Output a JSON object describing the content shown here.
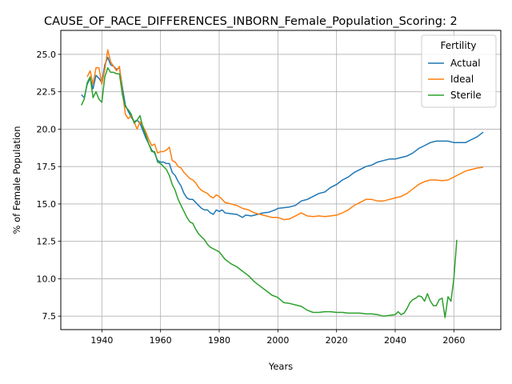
{
  "chart_data": {
    "type": "line",
    "title": "CAUSE_OF_RACE_DIFFERENCES_INBORN_Female_Population_Scoring: 2",
    "xlabel": "Years",
    "ylabel": "% of Female Population",
    "xlim": [
      1926,
      2076
    ],
    "ylim": [
      6.6,
      26.6
    ],
    "xticks": [
      1940,
      1960,
      1980,
      2000,
      2020,
      2040,
      2060
    ],
    "yticks": [
      7.5,
      10.0,
      12.5,
      15.0,
      17.5,
      20.0,
      22.5,
      25.0
    ],
    "grid": true,
    "legend": {
      "title": "Fertility",
      "position": "top-right"
    },
    "series": [
      {
        "name": "Actual",
        "color": "#1f77b4",
        "points": [
          [
            1933,
            22.3
          ],
          [
            1934,
            22.1
          ],
          [
            1935,
            23.0
          ],
          [
            1936,
            23.4
          ],
          [
            1937,
            22.7
          ],
          [
            1938,
            23.6
          ],
          [
            1939,
            23.4
          ],
          [
            1940,
            23.1
          ],
          [
            1941,
            24.3
          ],
          [
            1942,
            24.8
          ],
          [
            1943,
            24.3
          ],
          [
            1944,
            24.2
          ],
          [
            1945,
            24.0
          ],
          [
            1946,
            24.1
          ],
          [
            1947,
            22.8
          ],
          [
            1948,
            21.6
          ],
          [
            1949,
            21.2
          ],
          [
            1950,
            20.8
          ],
          [
            1951,
            20.5
          ],
          [
            1952,
            20.6
          ],
          [
            1953,
            20.4
          ],
          [
            1954,
            19.9
          ],
          [
            1955,
            19.4
          ],
          [
            1956,
            19.0
          ],
          [
            1957,
            18.6
          ],
          [
            1958,
            18.4
          ],
          [
            1959,
            17.9
          ],
          [
            1960,
            17.8
          ],
          [
            1961,
            17.8
          ],
          [
            1962,
            17.7
          ],
          [
            1963,
            17.7
          ],
          [
            1964,
            17.1
          ],
          [
            1965,
            16.9
          ],
          [
            1966,
            16.5
          ],
          [
            1967,
            16.2
          ],
          [
            1968,
            15.7
          ],
          [
            1969,
            15.4
          ],
          [
            1970,
            15.3
          ],
          [
            1971,
            15.3
          ],
          [
            1972,
            15.1
          ],
          [
            1973,
            14.9
          ],
          [
            1974,
            14.7
          ],
          [
            1975,
            14.6
          ],
          [
            1976,
            14.6
          ],
          [
            1977,
            14.4
          ],
          [
            1978,
            14.3
          ],
          [
            1979,
            14.6
          ],
          [
            1980,
            14.5
          ],
          [
            1981,
            14.6
          ],
          [
            1982,
            14.4
          ],
          [
            1984,
            14.35
          ],
          [
            1986,
            14.3
          ],
          [
            1988,
            14.1
          ],
          [
            1989,
            14.25
          ],
          [
            1991,
            14.2
          ],
          [
            1993,
            14.3
          ],
          [
            1995,
            14.4
          ],
          [
            1997,
            14.45
          ],
          [
            1999,
            14.6
          ],
          [
            2000,
            14.7
          ],
          [
            2002,
            14.75
          ],
          [
            2004,
            14.8
          ],
          [
            2006,
            14.9
          ],
          [
            2008,
            15.2
          ],
          [
            2010,
            15.3
          ],
          [
            2012,
            15.5
          ],
          [
            2014,
            15.7
          ],
          [
            2016,
            15.8
          ],
          [
            2018,
            16.1
          ],
          [
            2020,
            16.3
          ],
          [
            2022,
            16.6
          ],
          [
            2024,
            16.8
          ],
          [
            2026,
            17.1
          ],
          [
            2028,
            17.3
          ],
          [
            2030,
            17.5
          ],
          [
            2032,
            17.6
          ],
          [
            2034,
            17.8
          ],
          [
            2036,
            17.9
          ],
          [
            2038,
            18.0
          ],
          [
            2040,
            18.0
          ],
          [
            2042,
            18.1
          ],
          [
            2044,
            18.2
          ],
          [
            2046,
            18.4
          ],
          [
            2048,
            18.7
          ],
          [
            2050,
            18.9
          ],
          [
            2052,
            19.1
          ],
          [
            2054,
            19.2
          ],
          [
            2056,
            19.2
          ],
          [
            2058,
            19.2
          ],
          [
            2060,
            19.1
          ],
          [
            2062,
            19.1
          ],
          [
            2064,
            19.1
          ],
          [
            2066,
            19.3
          ],
          [
            2068,
            19.5
          ],
          [
            2070,
            19.8
          ]
        ]
      },
      {
        "name": "Ideal",
        "color": "#ff7f0e",
        "points": [
          [
            1935,
            23.5
          ],
          [
            1936,
            23.9
          ],
          [
            1937,
            23.0
          ],
          [
            1938,
            24.1
          ],
          [
            1939,
            24.1
          ],
          [
            1940,
            23.0
          ],
          [
            1941,
            24.0
          ],
          [
            1942,
            25.3
          ],
          [
            1943,
            24.5
          ],
          [
            1944,
            24.2
          ],
          [
            1945,
            23.9
          ],
          [
            1946,
            24.2
          ],
          [
            1947,
            22.5
          ],
          [
            1948,
            21.0
          ],
          [
            1949,
            20.7
          ],
          [
            1950,
            20.9
          ],
          [
            1951,
            20.5
          ],
          [
            1952,
            20.0
          ],
          [
            1953,
            20.5
          ],
          [
            1954,
            20.2
          ],
          [
            1955,
            19.8
          ],
          [
            1956,
            19.3
          ],
          [
            1957,
            18.9
          ],
          [
            1958,
            19.0
          ],
          [
            1959,
            18.4
          ],
          [
            1960,
            18.5
          ],
          [
            1961,
            18.5
          ],
          [
            1962,
            18.6
          ],
          [
            1963,
            18.8
          ],
          [
            1964,
            17.9
          ],
          [
            1965,
            17.8
          ],
          [
            1966,
            17.5
          ],
          [
            1967,
            17.4
          ],
          [
            1968,
            17.1
          ],
          [
            1969,
            16.9
          ],
          [
            1970,
            16.7
          ],
          [
            1971,
            16.6
          ],
          [
            1972,
            16.4
          ],
          [
            1973,
            16.1
          ],
          [
            1974,
            15.9
          ],
          [
            1975,
            15.8
          ],
          [
            1976,
            15.7
          ],
          [
            1977,
            15.5
          ],
          [
            1978,
            15.4
          ],
          [
            1979,
            15.6
          ],
          [
            1980,
            15.5
          ],
          [
            1981,
            15.3
          ],
          [
            1982,
            15.1
          ],
          [
            1984,
            15.0
          ],
          [
            1986,
            14.9
          ],
          [
            1988,
            14.7
          ],
          [
            1990,
            14.6
          ],
          [
            1992,
            14.4
          ],
          [
            1994,
            14.3
          ],
          [
            1996,
            14.2
          ],
          [
            1998,
            14.1
          ],
          [
            2000,
            14.1
          ],
          [
            2002,
            13.95
          ],
          [
            2004,
            14.0
          ],
          [
            2006,
            14.2
          ],
          [
            2008,
            14.4
          ],
          [
            2010,
            14.2
          ],
          [
            2012,
            14.15
          ],
          [
            2014,
            14.2
          ],
          [
            2016,
            14.15
          ],
          [
            2018,
            14.2
          ],
          [
            2020,
            14.25
          ],
          [
            2022,
            14.4
          ],
          [
            2024,
            14.6
          ],
          [
            2026,
            14.9
          ],
          [
            2028,
            15.1
          ],
          [
            2030,
            15.3
          ],
          [
            2032,
            15.3
          ],
          [
            2034,
            15.2
          ],
          [
            2036,
            15.2
          ],
          [
            2038,
            15.3
          ],
          [
            2040,
            15.4
          ],
          [
            2042,
            15.5
          ],
          [
            2044,
            15.7
          ],
          [
            2046,
            16.0
          ],
          [
            2048,
            16.3
          ],
          [
            2050,
            16.5
          ],
          [
            2052,
            16.6
          ],
          [
            2054,
            16.6
          ],
          [
            2056,
            16.55
          ],
          [
            2058,
            16.6
          ],
          [
            2060,
            16.8
          ],
          [
            2062,
            17.0
          ],
          [
            2064,
            17.2
          ],
          [
            2066,
            17.3
          ],
          [
            2068,
            17.4
          ],
          [
            2070,
            17.45
          ]
        ]
      },
      {
        "name": "Sterile",
        "color": "#2ca02c",
        "points": [
          [
            1933,
            21.6
          ],
          [
            1934,
            22.0
          ],
          [
            1935,
            23.1
          ],
          [
            1936,
            23.5
          ],
          [
            1937,
            22.1
          ],
          [
            1938,
            22.5
          ],
          [
            1939,
            22.0
          ],
          [
            1940,
            21.8
          ],
          [
            1941,
            23.5
          ],
          [
            1942,
            24.1
          ],
          [
            1943,
            23.8
          ],
          [
            1944,
            23.8
          ],
          [
            1945,
            23.7
          ],
          [
            1946,
            23.7
          ],
          [
            1947,
            22.3
          ],
          [
            1948,
            21.5
          ],
          [
            1949,
            21.3
          ],
          [
            1950,
            21.0
          ],
          [
            1951,
            20.4
          ],
          [
            1952,
            20.6
          ],
          [
            1953,
            20.9
          ],
          [
            1954,
            20.1
          ],
          [
            1955,
            19.6
          ],
          [
            1956,
            19.0
          ],
          [
            1957,
            18.5
          ],
          [
            1958,
            18.5
          ],
          [
            1959,
            17.8
          ],
          [
            1960,
            17.7
          ],
          [
            1961,
            17.5
          ],
          [
            1962,
            17.3
          ],
          [
            1963,
            16.9
          ],
          [
            1964,
            16.3
          ],
          [
            1965,
            15.9
          ],
          [
            1966,
            15.3
          ],
          [
            1967,
            14.9
          ],
          [
            1968,
            14.5
          ],
          [
            1969,
            14.1
          ],
          [
            1970,
            13.8
          ],
          [
            1971,
            13.7
          ],
          [
            1972,
            13.3
          ],
          [
            1973,
            13.0
          ],
          [
            1974,
            12.8
          ],
          [
            1975,
            12.6
          ],
          [
            1976,
            12.3
          ],
          [
            1977,
            12.1
          ],
          [
            1978,
            12.0
          ],
          [
            1980,
            11.8
          ],
          [
            1982,
            11.3
          ],
          [
            1984,
            11.0
          ],
          [
            1986,
            10.8
          ],
          [
            1988,
            10.5
          ],
          [
            1990,
            10.2
          ],
          [
            1992,
            9.8
          ],
          [
            1994,
            9.5
          ],
          [
            1996,
            9.2
          ],
          [
            1998,
            8.9
          ],
          [
            2000,
            8.75
          ],
          [
            2002,
            8.4
          ],
          [
            2004,
            8.35
          ],
          [
            2006,
            8.25
          ],
          [
            2008,
            8.15
          ],
          [
            2010,
            7.9
          ],
          [
            2012,
            7.75
          ],
          [
            2014,
            7.75
          ],
          [
            2016,
            7.8
          ],
          [
            2018,
            7.8
          ],
          [
            2020,
            7.75
          ],
          [
            2022,
            7.75
          ],
          [
            2024,
            7.7
          ],
          [
            2026,
            7.7
          ],
          [
            2028,
            7.7
          ],
          [
            2030,
            7.65
          ],
          [
            2032,
            7.65
          ],
          [
            2034,
            7.6
          ],
          [
            2036,
            7.5
          ],
          [
            2038,
            7.55
          ],
          [
            2040,
            7.6
          ],
          [
            2041,
            7.8
          ],
          [
            2042,
            7.6
          ],
          [
            2043,
            7.7
          ],
          [
            2044,
            8.0
          ],
          [
            2045,
            8.4
          ],
          [
            2046,
            8.6
          ],
          [
            2047,
            8.7
          ],
          [
            2048,
            8.85
          ],
          [
            2049,
            8.8
          ],
          [
            2050,
            8.5
          ],
          [
            2051,
            9.0
          ],
          [
            2052,
            8.5
          ],
          [
            2053,
            8.2
          ],
          [
            2054,
            8.2
          ],
          [
            2055,
            8.6
          ],
          [
            2056,
            8.7
          ],
          [
            2057,
            7.4
          ],
          [
            2058,
            8.8
          ],
          [
            2059,
            8.5
          ],
          [
            2060,
            10.0
          ],
          [
            2061,
            12.6
          ]
        ]
      }
    ]
  }
}
